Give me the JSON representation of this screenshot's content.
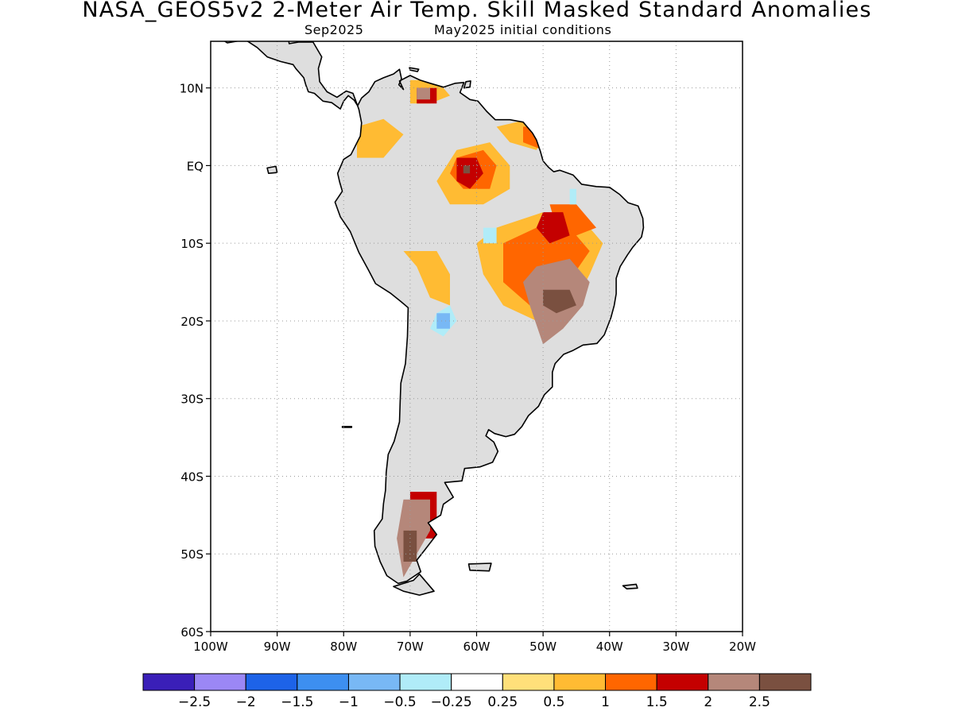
{
  "title": "NASA_GEOS5v2 2-Meter Air Temp. Skill Masked Standard Anomalies",
  "subtitle_left": "Sep2025",
  "subtitle_right": "May2025 initial conditions",
  "lat_ticks": [
    {
      "value": 10,
      "label": "10N"
    },
    {
      "value": 0,
      "label": "EQ"
    },
    {
      "value": -10,
      "label": "10S"
    },
    {
      "value": -20,
      "label": "20S"
    },
    {
      "value": -30,
      "label": "30S"
    },
    {
      "value": -40,
      "label": "40S"
    },
    {
      "value": -50,
      "label": "50S"
    },
    {
      "value": -60,
      "label": "60S"
    }
  ],
  "lon_ticks": [
    {
      "value": -100,
      "label": "100W"
    },
    {
      "value": -90,
      "label": "90W"
    },
    {
      "value": -80,
      "label": "80W"
    },
    {
      "value": -70,
      "label": "70W"
    },
    {
      "value": -60,
      "label": "60W"
    },
    {
      "value": -50,
      "label": "50W"
    },
    {
      "value": -40,
      "label": "40W"
    },
    {
      "value": -30,
      "label": "30W"
    },
    {
      "value": -20,
      "label": "20W"
    }
  ],
  "extent": {
    "lon_min": -100,
    "lon_max": -20,
    "lat_min": -60,
    "lat_max": 16
  },
  "grid": "dotted",
  "colorbar": {
    "colors": [
      "#3a1fb8",
      "#9b87f5",
      "#1d63e8",
      "#3d8ff0",
      "#78b8f5",
      "#b0ecf8",
      "#ffffff",
      "#ffe07a",
      "#ffbb33",
      "#ff6600",
      "#c40000",
      "#b5877a",
      "#7a5040"
    ],
    "labels": [
      "-2.5",
      "-2",
      "-1.5",
      "-1",
      "-0.5",
      "-0.25",
      "0.25",
      "0.5",
      "1",
      "1.5",
      "2",
      "2.5"
    ]
  },
  "colors": {
    "masked_land": "#dedede",
    "coast": "#000000"
  },
  "anomaly_regions": [
    {
      "level": 0.5,
      "polygon": [
        [
          -57,
          -8
        ],
        [
          -50,
          -6
        ],
        [
          -44,
          -7
        ],
        [
          -41,
          -10
        ],
        [
          -43,
          -14
        ],
        [
          -46,
          -19
        ],
        [
          -51,
          -20
        ],
        [
          -56,
          -18
        ],
        [
          -59,
          -14
        ],
        [
          -60,
          -10
        ]
      ]
    },
    {
      "level": 0.5,
      "polygon": [
        [
          -63,
          2
        ],
        [
          -58,
          3
        ],
        [
          -55,
          0
        ],
        [
          -55,
          -3
        ],
        [
          -59,
          -5
        ],
        [
          -64,
          -5
        ],
        [
          -66,
          -2
        ]
      ]
    },
    {
      "level": 0.5,
      "polygon": [
        [
          -57,
          5
        ],
        [
          -52,
          6
        ],
        [
          -49,
          5
        ],
        [
          -51,
          2
        ],
        [
          -55,
          3
        ]
      ]
    },
    {
      "level": 0.5,
      "polygon": [
        [
          -78,
          5
        ],
        [
          -74,
          6
        ],
        [
          -71,
          4
        ],
        [
          -74,
          1
        ],
        [
          -78,
          1
        ]
      ]
    },
    {
      "level": 0.5,
      "polygon": [
        [
          -70,
          11
        ],
        [
          -66,
          11
        ],
        [
          -64,
          9
        ],
        [
          -67,
          8
        ],
        [
          -70,
          8
        ]
      ]
    },
    {
      "level": 0.5,
      "polygon": [
        [
          -71,
          -11
        ],
        [
          -66,
          -11
        ],
        [
          -64,
          -14
        ],
        [
          -64,
          -18
        ],
        [
          -67,
          -17
        ],
        [
          -69,
          -13
        ]
      ]
    },
    {
      "level": 1.0,
      "polygon": [
        [
          -56,
          -10
        ],
        [
          -51,
          -8
        ],
        [
          -46,
          -8
        ],
        [
          -43,
          -11
        ],
        [
          -47,
          -16
        ],
        [
          -52,
          -18
        ],
        [
          -56,
          -15
        ]
      ]
    },
    {
      "level": 1.0,
      "polygon": [
        [
          -63,
          1
        ],
        [
          -59,
          2
        ],
        [
          -57,
          0
        ],
        [
          -58,
          -3
        ],
        [
          -62,
          -3
        ],
        [
          -64,
          -1
        ]
      ]
    },
    {
      "level": 1.0,
      "polygon": [
        [
          -53,
          5
        ],
        [
          -50,
          5
        ],
        [
          -48,
          3
        ],
        [
          -50,
          2
        ],
        [
          -53,
          3
        ]
      ]
    },
    {
      "level": 1.0,
      "polygon": [
        [
          -49,
          -5
        ],
        [
          -45,
          -5
        ],
        [
          -42,
          -8
        ],
        [
          -45,
          -9
        ],
        [
          -48,
          -8
        ]
      ]
    },
    {
      "level": 1.5,
      "polygon": [
        [
          -63,
          1
        ],
        [
          -60,
          1
        ],
        [
          -59,
          -1
        ],
        [
          -61,
          -3
        ],
        [
          -63,
          -2
        ]
      ]
    },
    {
      "level": 1.5,
      "polygon": [
        [
          -69,
          10
        ],
        [
          -66,
          10
        ],
        [
          -66,
          8
        ],
        [
          -69,
          8
        ]
      ]
    },
    {
      "level": 1.5,
      "polygon": [
        [
          -50,
          -6
        ],
        [
          -47,
          -6
        ],
        [
          -46,
          -9
        ],
        [
          -49,
          -10
        ],
        [
          -51,
          -8
        ]
      ]
    },
    {
      "level": 1.5,
      "polygon": [
        [
          -70,
          -42
        ],
        [
          -66,
          -42
        ],
        [
          -66,
          -48
        ],
        [
          -70,
          -48
        ]
      ]
    },
    {
      "level": 2.0,
      "polygon": [
        [
          -51,
          -13
        ],
        [
          -46,
          -12
        ],
        [
          -43,
          -15
        ],
        [
          -44,
          -18
        ],
        [
          -47,
          -21
        ],
        [
          -50,
          -23
        ],
        [
          -52,
          -18
        ],
        [
          -53,
          -15
        ]
      ]
    },
    {
      "level": 2.0,
      "polygon": [
        [
          -71,
          -43
        ],
        [
          -67,
          -43
        ],
        [
          -67,
          -47
        ],
        [
          -69,
          -50
        ],
        [
          -71,
          -53
        ],
        [
          -72,
          -48
        ]
      ]
    },
    {
      "level": 2.0,
      "polygon": [
        [
          -69,
          10
        ],
        [
          -67,
          10
        ],
        [
          -67,
          8.5
        ],
        [
          -69,
          8.5
        ]
      ]
    },
    {
      "level": 2.5,
      "polygon": [
        [
          -50,
          -16
        ],
        [
          -46,
          -16
        ],
        [
          -45,
          -18
        ],
        [
          -48,
          -19
        ],
        [
          -50,
          -18
        ]
      ]
    },
    {
      "level": 2.5,
      "polygon": [
        [
          -71,
          -47
        ],
        [
          -69,
          -47
        ],
        [
          -69,
          -51
        ],
        [
          -71,
          -51
        ]
      ]
    },
    {
      "level": 2.5,
      "polygon": [
        [
          -62,
          0
        ],
        [
          -61,
          0
        ],
        [
          -61,
          -1
        ],
        [
          -62,
          -1
        ]
      ]
    },
    {
      "level": -0.5,
      "polygon": [
        [
          -66,
          -19
        ],
        [
          -64,
          -18
        ],
        [
          -63,
          -20
        ],
        [
          -65,
          -22
        ],
        [
          -67,
          -21
        ]
      ]
    },
    {
      "level": -1.0,
      "polygon": [
        [
          -66,
          -19
        ],
        [
          -64,
          -19
        ],
        [
          -64,
          -21
        ],
        [
          -66,
          -21
        ]
      ]
    },
    {
      "level": -0.5,
      "polygon": [
        [
          -59,
          -8
        ],
        [
          -57,
          -8
        ],
        [
          -57,
          -10
        ],
        [
          -59,
          -10
        ]
      ]
    },
    {
      "level": -0.5,
      "polygon": [
        [
          -46,
          -3
        ],
        [
          -45,
          -3
        ],
        [
          -45,
          -5
        ],
        [
          -46,
          -5
        ]
      ]
    }
  ]
}
